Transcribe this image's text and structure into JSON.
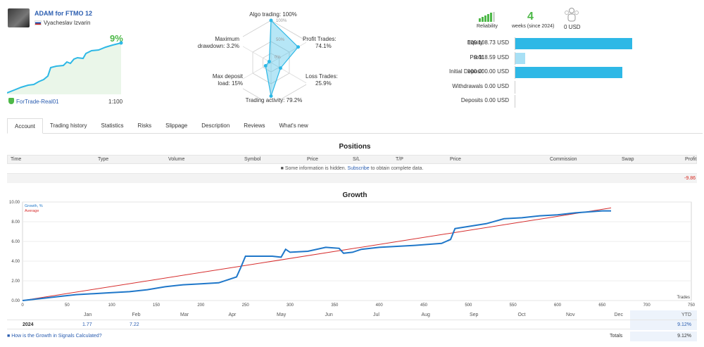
{
  "signal": {
    "title": "ADAM for FTMO 12",
    "author": "Vyacheslav Izvarin",
    "growth": "9%",
    "broker": "ForTrade-Real01",
    "leverage": "1:100"
  },
  "radar": {
    "labels": {
      "algo": "Algo trading: 100%",
      "profit_trades": "Profit Trades:",
      "profit_trades_val": "74.1%",
      "loss_trades": "Loss Trades:",
      "loss_trades_val": "25.9%",
      "activity": "Trading activity: 79.2%",
      "deposit_load": "Max deposit",
      "deposit_load_val": "load: 15%",
      "drawdown": "Maximum",
      "drawdown_val": "drawdown: 3.2%"
    },
    "ticks": [
      "100%",
      "50%",
      "0%"
    ],
    "values": {
      "algo": 100,
      "profit_trades": 74.1,
      "loss_trades": 25.9,
      "activity": 79.2,
      "deposit_load": 15,
      "drawdown": 3.2
    }
  },
  "stats": {
    "reliability_label": "Reliability",
    "weeks_value": "4",
    "weeks_label": "weeks (since 2024)",
    "subscribers_value": "0 USD",
    "rows": [
      {
        "label": "Equity",
        "value": "109 108.73 USD",
        "fraction": 1.0,
        "color": "#2eb8e6"
      },
      {
        "label": "Profit",
        "value": "9 118.59 USD",
        "fraction": 0.084,
        "color": "#a8e0f5"
      },
      {
        "label": "Initial Deposit",
        "value": "100 000.00 USD",
        "fraction": 0.917,
        "color": "#2eb8e6"
      },
      {
        "label": "Withdrawals",
        "value": "0.00 USD",
        "fraction": 0,
        "color": "#2eb8e6"
      },
      {
        "label": "Deposits",
        "value": "0.00 USD",
        "fraction": 0,
        "color": "#2eb8e6"
      }
    ]
  },
  "tabs": [
    "Account",
    "Trading history",
    "Statistics",
    "Risks",
    "Slippage",
    "Description",
    "Reviews",
    "What's new"
  ],
  "positions": {
    "title": "Positions",
    "columns": [
      "Time",
      "Type",
      "Volume",
      "Symbol",
      "Price",
      "S/L",
      "T/P",
      "Price",
      "Commission",
      "Swap",
      "Profit"
    ],
    "hidden_text": "Some information is hidden.",
    "subscribe_link": "Subscribe",
    "hidden_suffix": "to obtain complete data.",
    "total_profit": "-9.86"
  },
  "growth_chart": {
    "title": "Growth",
    "legend_growth": "Growth, %",
    "legend_average": "Average",
    "x_axis_label": "Trades",
    "months": [
      "Jan",
      "Feb",
      "Mar",
      "Apr",
      "May",
      "Jun",
      "Jul",
      "Aug",
      "Sep",
      "Oct",
      "Nov",
      "Dec"
    ],
    "ytd_label": "YTD",
    "year": "2024",
    "jan_value": "1.77",
    "feb_value": "7.22",
    "ytd_value": "9.12%",
    "totals_label": "Totals",
    "totals_value": "9.12%",
    "help_link": "How is the Growth in Signals Calculated?"
  },
  "chart_data": {
    "type": "line",
    "title": "Growth",
    "xlabel": "Trades",
    "ylabel": "Growth, %",
    "xlim": [
      0,
      750
    ],
    "ylim": [
      0,
      10
    ],
    "x_ticks": [
      0,
      50,
      100,
      150,
      200,
      250,
      300,
      350,
      400,
      450,
      500,
      550,
      600,
      650,
      700,
      750
    ],
    "y_ticks": [
      "0.00",
      "2.00",
      "4.00",
      "6.00",
      "8.00",
      "10.00"
    ],
    "series": [
      {
        "name": "Growth, %",
        "color": "#1f77c9",
        "x": [
          0,
          20,
          40,
          60,
          80,
          100,
          120,
          140,
          160,
          180,
          200,
          220,
          240,
          245,
          250,
          280,
          290,
          295,
          300,
          320,
          340,
          355,
          360,
          370,
          380,
          400,
          440,
          470,
          480,
          485,
          520,
          540,
          560,
          580,
          600,
          620,
          650,
          660
        ],
        "values": [
          0,
          0.2,
          0.4,
          0.6,
          0.7,
          0.8,
          0.9,
          1.1,
          1.4,
          1.6,
          1.7,
          1.8,
          2.4,
          3.4,
          4.5,
          4.5,
          4.4,
          5.2,
          4.9,
          5.0,
          5.4,
          5.3,
          4.8,
          4.9,
          5.2,
          5.4,
          5.6,
          5.8,
          6.2,
          7.3,
          7.8,
          8.3,
          8.4,
          8.6,
          8.7,
          8.9,
          9.1,
          9.1
        ]
      },
      {
        "name": "Average",
        "color": "#d62c2c",
        "x": [
          0,
          660
        ],
        "values": [
          0,
          9.4
        ]
      }
    ]
  },
  "colors": {
    "accent_blue": "#2a5db0",
    "green": "#4db848",
    "bar_blue": "#2eb8e6"
  }
}
